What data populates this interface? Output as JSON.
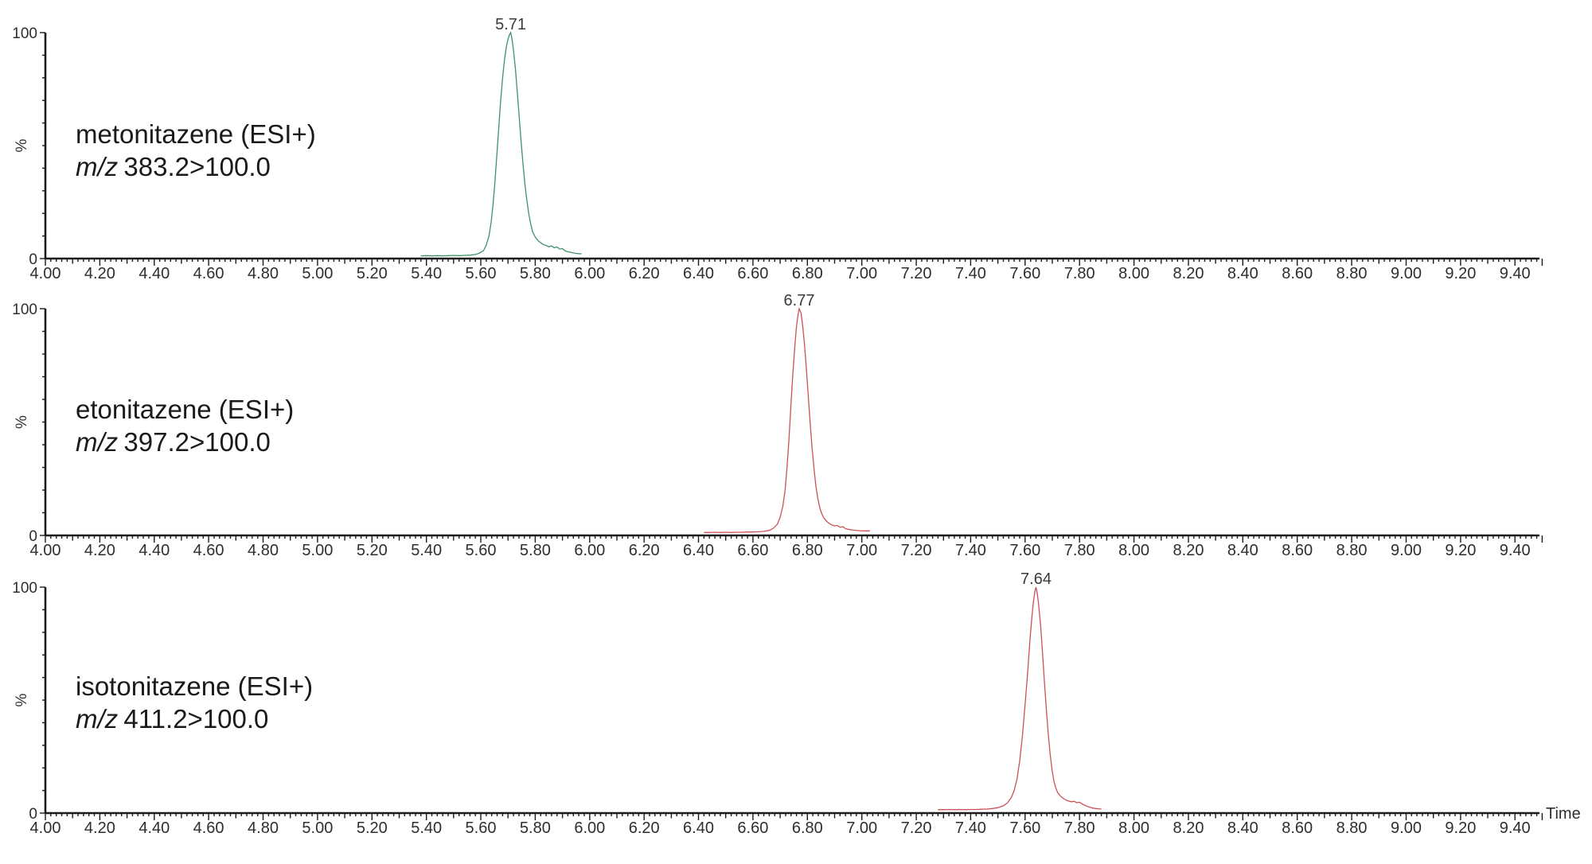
{
  "figure": {
    "background": "#ffffff",
    "axis_color": "#1b1b1b",
    "tick_label_color": "#2e2e2e",
    "text_color": "#1a1a1a",
    "time_axis_label": "Time",
    "x_axis": {
      "min": 4.0,
      "max": 9.49,
      "major_step": 0.2,
      "mid_step": 0.1,
      "minor_step": 0.02,
      "tick_labels": [
        "4.00",
        "4.20",
        "4.40",
        "4.60",
        "4.80",
        "5.00",
        "5.20",
        "5.40",
        "5.60",
        "5.80",
        "6.00",
        "6.20",
        "6.40",
        "6.60",
        "6.80",
        "7.00",
        "7.20",
        "7.40",
        "7.60",
        "7.80",
        "8.00",
        "8.20",
        "8.40",
        "8.60",
        "8.80",
        "9.00",
        "9.20",
        "9.40"
      ]
    },
    "y_axis": {
      "min": 0,
      "max": 100,
      "minor_step": 10,
      "tick_labels": [
        "100",
        "0"
      ],
      "label": "%"
    }
  },
  "chart_data": [
    {
      "type": "line",
      "title": "metonitazene (ESI+)",
      "transition_prefix": "m/z",
      "transition": "383.2>100.0",
      "peak_label": "5.71",
      "peak_rt": 5.71,
      "color": "#3e9169",
      "xlabel": "Time",
      "ylabel": "%",
      "xlim": [
        4.0,
        9.49
      ],
      "ylim": [
        0,
        100
      ],
      "points": [
        [
          5.38,
          1.2
        ],
        [
          5.4,
          1.3
        ],
        [
          5.42,
          1.2
        ],
        [
          5.44,
          1.3
        ],
        [
          5.46,
          1.2
        ],
        [
          5.48,
          1.3
        ],
        [
          5.5,
          1.4
        ],
        [
          5.52,
          1.3
        ],
        [
          5.54,
          1.4
        ],
        [
          5.56,
          1.5
        ],
        [
          5.58,
          1.8
        ],
        [
          5.595,
          2.4
        ],
        [
          5.61,
          3.5
        ],
        [
          5.62,
          6
        ],
        [
          5.63,
          10
        ],
        [
          5.638,
          16
        ],
        [
          5.645,
          24
        ],
        [
          5.652,
          34
        ],
        [
          5.659,
          46
        ],
        [
          5.666,
          58
        ],
        [
          5.673,
          70
        ],
        [
          5.68,
          80
        ],
        [
          5.687,
          88
        ],
        [
          5.694,
          94
        ],
        [
          5.7,
          97
        ],
        [
          5.705,
          99
        ],
        [
          5.71,
          100
        ],
        [
          5.715,
          97
        ],
        [
          5.72,
          92
        ],
        [
          5.727,
          84
        ],
        [
          5.734,
          74
        ],
        [
          5.741,
          63
        ],
        [
          5.748,
          52
        ],
        [
          5.755,
          42
        ],
        [
          5.762,
          33
        ],
        [
          5.769,
          26
        ],
        [
          5.776,
          20
        ],
        [
          5.783,
          15.5
        ],
        [
          5.79,
          12
        ],
        [
          5.8,
          9.5
        ],
        [
          5.81,
          8
        ],
        [
          5.82,
          7
        ],
        [
          5.83,
          6.2
        ],
        [
          5.84,
          5.8
        ],
        [
          5.85,
          5.2
        ],
        [
          5.86,
          5.6
        ],
        [
          5.87,
          4.8
        ],
        [
          5.88,
          5.1
        ],
        [
          5.89,
          4.2
        ],
        [
          5.9,
          4.4
        ],
        [
          5.91,
          3.4
        ],
        [
          5.92,
          3.0
        ],
        [
          5.93,
          2.8
        ],
        [
          5.94,
          2.5
        ],
        [
          5.95,
          2.3
        ],
        [
          5.96,
          2.2
        ],
        [
          5.97,
          2.1
        ]
      ]
    },
    {
      "type": "line",
      "title": "etonitazene (ESI+)",
      "transition_prefix": "m/z",
      "transition": "397.2>100.0",
      "peak_label": "6.77",
      "peak_rt": 6.77,
      "color": "#cb5158",
      "xlabel": "Time",
      "ylabel": "%",
      "xlim": [
        4.0,
        9.49
      ],
      "ylim": [
        0,
        100
      ],
      "points": [
        [
          6.42,
          1.3
        ],
        [
          6.44,
          1.3
        ],
        [
          6.46,
          1.4
        ],
        [
          6.48,
          1.3
        ],
        [
          6.5,
          1.4
        ],
        [
          6.52,
          1.3
        ],
        [
          6.54,
          1.4
        ],
        [
          6.56,
          1.4
        ],
        [
          6.58,
          1.5
        ],
        [
          6.6,
          1.5
        ],
        [
          6.62,
          1.6
        ],
        [
          6.64,
          1.8
        ],
        [
          6.66,
          2.2
        ],
        [
          6.675,
          3.2
        ],
        [
          6.69,
          5
        ],
        [
          6.7,
          8
        ],
        [
          6.71,
          13
        ],
        [
          6.718,
          20
        ],
        [
          6.725,
          30
        ],
        [
          6.732,
          42
        ],
        [
          6.739,
          56
        ],
        [
          6.746,
          70
        ],
        [
          6.753,
          82
        ],
        [
          6.759,
          91
        ],
        [
          6.764,
          96
        ],
        [
          6.768,
          99
        ],
        [
          6.77,
          100
        ],
        [
          6.777,
          98
        ],
        [
          6.782,
          93
        ],
        [
          6.789,
          85
        ],
        [
          6.796,
          74
        ],
        [
          6.803,
          62
        ],
        [
          6.81,
          50
        ],
        [
          6.817,
          39
        ],
        [
          6.824,
          30
        ],
        [
          6.831,
          22
        ],
        [
          6.838,
          16.5
        ],
        [
          6.845,
          12.5
        ],
        [
          6.852,
          9.8
        ],
        [
          6.86,
          7.8
        ],
        [
          6.87,
          6.3
        ],
        [
          6.88,
          5.3
        ],
        [
          6.89,
          4.6
        ],
        [
          6.9,
          4.2
        ],
        [
          6.91,
          4.4
        ],
        [
          6.92,
          3.6
        ],
        [
          6.93,
          3.9
        ],
        [
          6.94,
          3.0
        ],
        [
          6.95,
          2.7
        ],
        [
          6.97,
          2.3
        ],
        [
          6.99,
          2.1
        ],
        [
          7.01,
          2.0
        ],
        [
          7.03,
          2.0
        ]
      ]
    },
    {
      "type": "line",
      "title": "isotonitazene (ESI+)",
      "transition_prefix": "m/z",
      "transition": "411.2>100.0",
      "peak_label": "7.64",
      "peak_rt": 7.64,
      "color": "#cb5158",
      "xlabel": "Time",
      "ylabel": "%",
      "xlim": [
        4.0,
        9.49
      ],
      "ylim": [
        0,
        100
      ],
      "points": [
        [
          7.28,
          1.5
        ],
        [
          7.3,
          1.5
        ],
        [
          7.32,
          1.6
        ],
        [
          7.34,
          1.5
        ],
        [
          7.36,
          1.6
        ],
        [
          7.38,
          1.5
        ],
        [
          7.4,
          1.6
        ],
        [
          7.42,
          1.6
        ],
        [
          7.44,
          1.7
        ],
        [
          7.46,
          1.8
        ],
        [
          7.48,
          2.0
        ],
        [
          7.5,
          2.4
        ],
        [
          7.52,
          3.2
        ],
        [
          7.535,
          4.5
        ],
        [
          7.55,
          7
        ],
        [
          7.56,
          10
        ],
        [
          7.57,
          15
        ],
        [
          7.58,
          23
        ],
        [
          7.59,
          34
        ],
        [
          7.6,
          48
        ],
        [
          7.61,
          63
        ],
        [
          7.618,
          77
        ],
        [
          7.625,
          87
        ],
        [
          7.631,
          94
        ],
        [
          7.636,
          98
        ],
        [
          7.64,
          100
        ],
        [
          7.645,
          97
        ],
        [
          7.65,
          92
        ],
        [
          7.657,
          83
        ],
        [
          7.664,
          71
        ],
        [
          7.671,
          58
        ],
        [
          7.678,
          46
        ],
        [
          7.685,
          35
        ],
        [
          7.692,
          26
        ],
        [
          7.699,
          19
        ],
        [
          7.706,
          14
        ],
        [
          7.713,
          11
        ],
        [
          7.72,
          9
        ],
        [
          7.73,
          7.5
        ],
        [
          7.74,
          6.5
        ],
        [
          7.75,
          5.8
        ],
        [
          7.76,
          5.3
        ],
        [
          7.77,
          5.0
        ],
        [
          7.78,
          5.2
        ],
        [
          7.79,
          4.6
        ],
        [
          7.8,
          4.8
        ],
        [
          7.81,
          4.0
        ],
        [
          7.82,
          3.4
        ],
        [
          7.83,
          2.9
        ],
        [
          7.84,
          2.5
        ],
        [
          7.85,
          2.2
        ],
        [
          7.86,
          2.0
        ],
        [
          7.87,
          1.9
        ],
        [
          7.88,
          1.8
        ]
      ]
    }
  ]
}
